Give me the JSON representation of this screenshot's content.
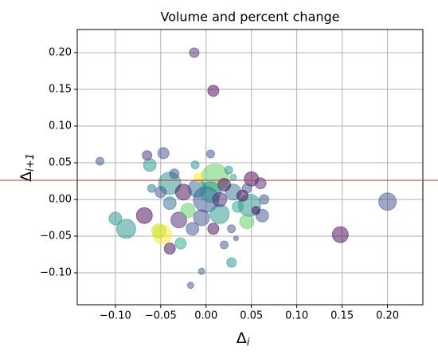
{
  "chart_data": {
    "type": "scatter",
    "title": "Volume and percent change",
    "x_label": [
      "Δ",
      "i"
    ],
    "y_label": [
      "Δ",
      "i+1"
    ],
    "xlim": [
      -0.142,
      0.239
    ],
    "ylim": [
      -0.1435,
      0.2315
    ],
    "xticks": [
      {
        "value": -0.1,
        "label": "−0.10"
      },
      {
        "value": -0.05,
        "label": "−0.05"
      },
      {
        "value": 0,
        "label": "0.00"
      },
      {
        "value": 0.05,
        "label": "0.05"
      },
      {
        "value": 0.1,
        "label": "0.10"
      },
      {
        "value": 0.15,
        "label": "0.15"
      },
      {
        "value": 0.2,
        "label": "0.20"
      }
    ],
    "yticks": [
      {
        "value": -0.1,
        "label": "−0.10"
      },
      {
        "value": -0.05,
        "label": "−0.05"
      },
      {
        "value": 0,
        "label": "0.00"
      },
      {
        "value": 0.05,
        "label": "0.05"
      },
      {
        "value": 0.1,
        "label": "0.10"
      },
      {
        "value": 0.15,
        "label": "0.15"
      },
      {
        "value": 0.2,
        "label": "0.20"
      }
    ],
    "grid": true,
    "opacity": 0.5,
    "x": [
      -0.013,
      0.008,
      -0.117,
      0.2,
      0.148,
      -0.1,
      -0.088,
      -0.068,
      -0.065,
      -0.062,
      -0.047,
      -0.048,
      -0.052,
      -0.04,
      -0.028,
      -0.017,
      -0.005,
      0.028,
      0.02,
      0.005,
      -0.012,
      0.01,
      -0.04,
      0.05,
      0.06,
      0.062,
      0.064,
      0.048,
      0.045,
      0.03,
      -0.025,
      -0.03,
      -0.015,
      0.0,
      0.015,
      -0.01,
      0.02,
      0.035,
      -0.04,
      0.008,
      0.025,
      0.045,
      -0.02,
      0.005,
      -0.005,
      0.04,
      0.028,
      -0.035,
      -0.05,
      0.015,
      0.03,
      -0.008,
      -0.06,
      0.055,
      0.033
    ],
    "values": [
      0.2,
      0.148,
      0.052,
      -0.003,
      -0.048,
      -0.026,
      -0.04,
      -0.022,
      0.06,
      0.047,
      0.063,
      -0.048,
      -0.043,
      -0.067,
      -0.06,
      -0.117,
      -0.098,
      -0.086,
      -0.062,
      0.062,
      0.047,
      0.03,
      0.022,
      0.028,
      0.022,
      -0.022,
      0.0,
      -0.008,
      -0.03,
      0.01,
      0.01,
      -0.028,
      -0.04,
      0.0,
      -0.02,
      0.015,
      0.02,
      -0.01,
      -0.005,
      -0.04,
      0.04,
      0.015,
      -0.015,
      0.01,
      -0.025,
      0.005,
      -0.04,
      0.035,
      0.01,
      0.0,
      0.03,
      0.03,
      0.015,
      -0.015,
      -0.053
    ],
    "sizes": [
      36,
      49,
      25,
      121,
      100,
      64,
      144,
      100,
      36,
      64,
      49,
      144,
      81,
      49,
      49,
      16,
      16,
      36,
      25,
      25,
      25,
      289,
      196,
      81,
      49,
      64,
      36,
      196,
      81,
      100,
      100,
      100,
      64,
      256,
      144,
      121,
      64,
      49,
      64,
      49,
      25,
      36,
      81,
      169,
      100,
      49,
      25,
      36,
      49,
      81,
      16,
      36,
      25,
      25,
      9
    ],
    "colors": [
      "#482878",
      "#440154",
      "#3b528b",
      "#3b528b",
      "#440154",
      "#21918c",
      "#21918c",
      "#440154",
      "#482878",
      "#21918c",
      "#3b528b",
      "#fde725",
      "#bddf26",
      "#440154",
      "#22a884",
      "#3b528b",
      "#31688e",
      "#21918c",
      "#3b528b",
      "#3b528b",
      "#21918c",
      "#5ec962",
      "#21918c",
      "#440154",
      "#482878",
      "#3b528b",
      "#3b528b",
      "#21918c",
      "#5ec962",
      "#2c728e",
      "#440154",
      "#482878",
      "#3b528b",
      "#3b528b",
      "#21918c",
      "#31688e",
      "#440154",
      "#22a884",
      "#2c728e",
      "#440154",
      "#21918c",
      "#3b528b",
      "#5ec962",
      "#21918c",
      "#3b528b",
      "#440154",
      "#3b528b",
      "#3b528b",
      "#3b528b",
      "#482878",
      "#22a884",
      "#fde725",
      "#2c728e",
      "#440154",
      "#3b528b"
    ]
  }
}
